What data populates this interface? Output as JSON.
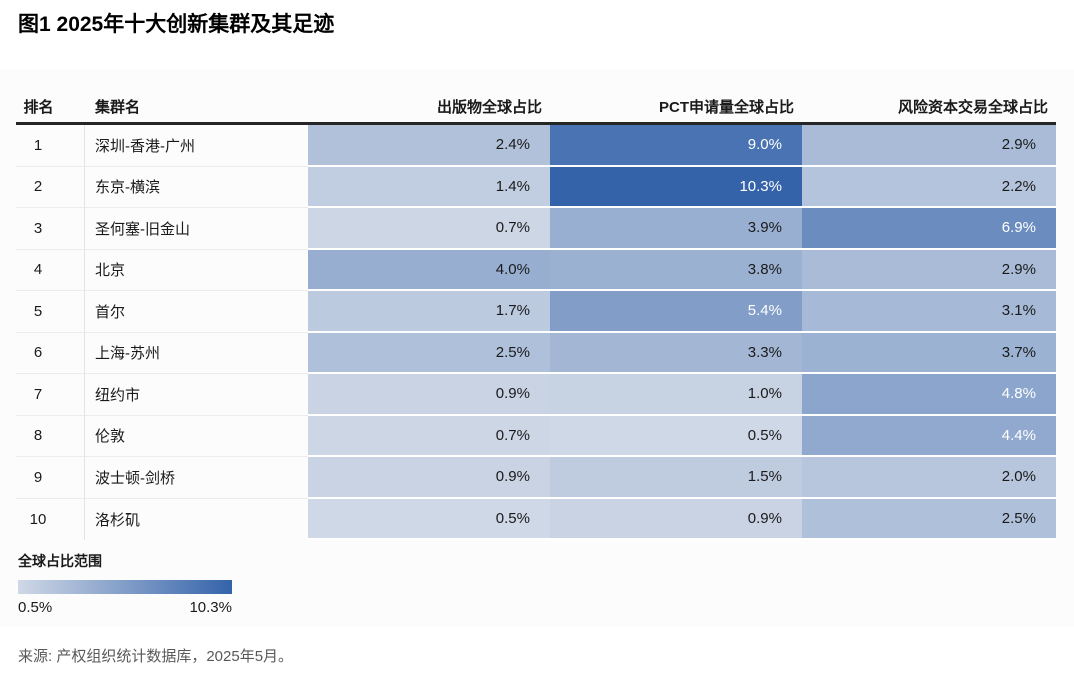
{
  "title": "图1 2025年十大创新集群及其足迹",
  "table": {
    "columns": {
      "rank": "排名",
      "cluster": "集群名",
      "publications": "出版物全球占比",
      "pct": "PCT申请量全球占比",
      "vc": "风险资本交易全球占比"
    }
  },
  "legend": {
    "title": "全球占比范围",
    "min_label": "0.5%",
    "max_label": "10.3%"
  },
  "source": "来源: 产权组织统计数据库，2025年5月。",
  "colors": {
    "scale_min_color": "#cfd8e6",
    "scale_max_color": "#3463aa",
    "header_rule": "#262626",
    "dark_cell_text": "#ffffff",
    "light_cell_text": "#1a1a1a",
    "white_text_min_value": 4.2,
    "source_text": "#595959"
  },
  "chart_data": {
    "type": "heatmap",
    "title": "图1 2025年十大创新集群及其足迹",
    "rows": [
      {
        "rank": "1",
        "cluster": "深圳-香港-广州",
        "publications": 2.4,
        "pct": 9.0,
        "vc": 2.9
      },
      {
        "rank": "2",
        "cluster": "东京-横滨",
        "publications": 1.4,
        "pct": 10.3,
        "vc": 2.2
      },
      {
        "rank": "3",
        "cluster": "圣何塞-旧金山",
        "publications": 0.7,
        "pct": 3.9,
        "vc": 6.9
      },
      {
        "rank": "4",
        "cluster": "北京",
        "publications": 4.0,
        "pct": 3.8,
        "vc": 2.9
      },
      {
        "rank": "5",
        "cluster": "首尔",
        "publications": 1.7,
        "pct": 5.4,
        "vc": 3.1
      },
      {
        "rank": "6",
        "cluster": "上海-苏州",
        "publications": 2.5,
        "pct": 3.3,
        "vc": 3.7
      },
      {
        "rank": "7",
        "cluster": "纽约市",
        "publications": 0.9,
        "pct": 1.0,
        "vc": 4.8
      },
      {
        "rank": "8",
        "cluster": "伦敦",
        "publications": 0.7,
        "pct": 0.5,
        "vc": 4.4
      },
      {
        "rank": "9",
        "cluster": "波士顿-剑桥",
        "publications": 0.9,
        "pct": 1.5,
        "vc": 2.0
      },
      {
        "rank": "10",
        "cluster": "洛杉矶",
        "publications": 0.5,
        "pct": 0.9,
        "vc": 2.5
      }
    ],
    "series": [
      {
        "name": "出版物全球占比",
        "values": [
          2.4,
          1.4,
          0.7,
          4.0,
          1.7,
          2.5,
          0.9,
          0.7,
          0.9,
          0.5
        ]
      },
      {
        "name": "PCT申请量全球占比",
        "values": [
          9.0,
          10.3,
          3.9,
          3.8,
          5.4,
          3.3,
          1.0,
          0.5,
          1.5,
          0.9
        ]
      },
      {
        "name": "风险资本交易全球占比",
        "values": [
          2.9,
          2.2,
          6.9,
          2.9,
          3.1,
          3.7,
          4.8,
          4.4,
          2.0,
          2.5
        ]
      }
    ],
    "value_format": "percent_one_decimal",
    "color_scale": {
      "min": 0.5,
      "max": 10.3,
      "min_color": "#cfd8e6",
      "max_color": "#3463aa"
    },
    "legend": {
      "title": "全球占比范围",
      "min_label": "0.5%",
      "max_label": "10.3%"
    }
  }
}
